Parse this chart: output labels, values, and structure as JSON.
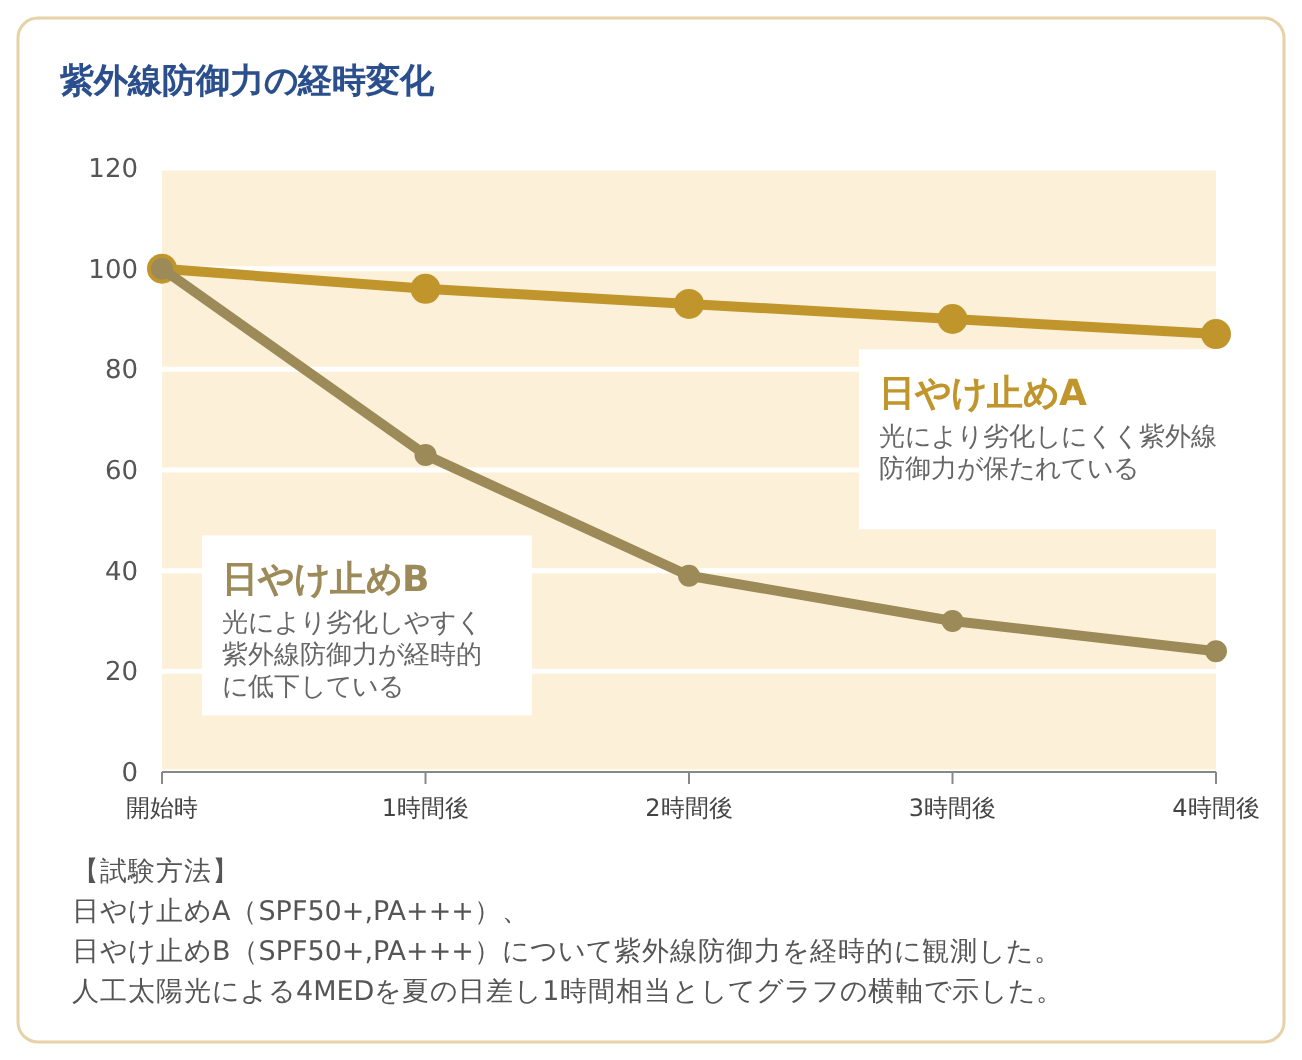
{
  "chart_data": {
    "type": "line",
    "title": "紫外線防御力の経時変化",
    "categories": [
      "開始時",
      "1時間後",
      "2時間後",
      "3時間後",
      "4時間後"
    ],
    "series": [
      {
        "name": "日やけ止めA",
        "color": "#c0962c",
        "values": [
          100,
          96,
          93,
          90,
          87
        ]
      },
      {
        "name": "日やけ止めB",
        "color": "#9c8a58",
        "values": [
          100,
          63,
          39,
          30,
          24
        ]
      }
    ],
    "ylim": [
      0,
      120
    ],
    "yticks": [
      0,
      20,
      40,
      60,
      80,
      100,
      120
    ],
    "grid": "y",
    "marker": "circle",
    "line_style": "solid",
    "annotations": [
      "光により劣化しにくく紫外線防御力が保たれている",
      "光により劣化しやすく紫外線防御力が経時的に低下している",
      "【試験方法】",
      "日やけ止めA（SPF50+,PA+++）、",
      "日やけ止めB（SPF50+,PA+++）について紫外線防御力を経時的に観測した。",
      "人工太陽光による4MEDを夏の日差し1時間相当としてグラフの横軸で示した。"
    ]
  }
}
